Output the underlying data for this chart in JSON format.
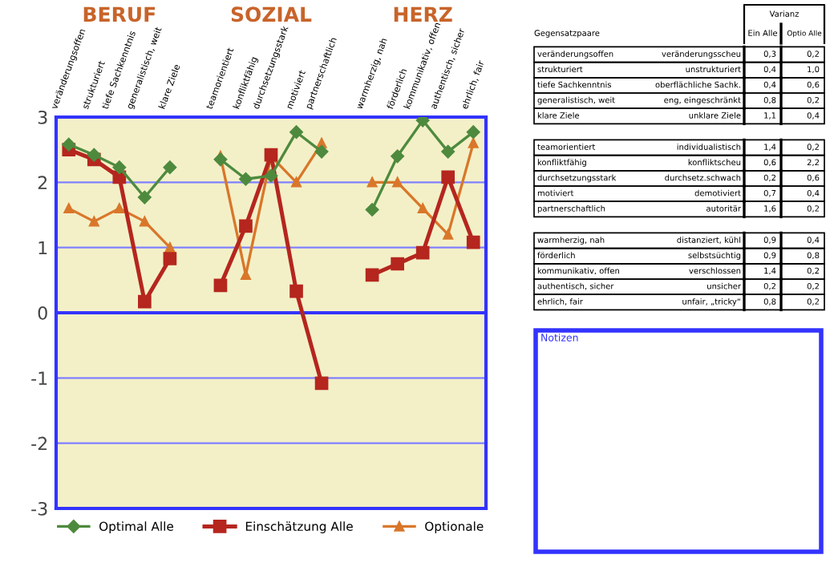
{
  "chart_data": [
    {
      "type": "line",
      "annotations": [
        "BERUF",
        "SOZIAL",
        "HERZ"
      ],
      "categories": [
        "veränderungsoffen",
        "strukturiert",
        "tiefe Sachkenntnis",
        "generalistisch, weit",
        "klare Ziele",
        null,
        "teamorientiert",
        "konfliktfähig",
        "durchsetzungsstark",
        "motiviert",
        "partnerschaftlich",
        null,
        "warmherzig, nah",
        "förderlich",
        "kommunikativ, offen",
        "authentisch, sicher",
        "ehrlich, fair"
      ],
      "series": [
        {
          "name": "Optimal Alle",
          "color": "#4e8a3e",
          "marker": "diamond",
          "values": [
            2.58,
            2.42,
            2.23,
            1.77,
            2.23,
            null,
            2.35,
            2.05,
            2.1,
            2.77,
            2.47,
            null,
            1.58,
            2.4,
            2.95,
            2.47,
            2.77
          ]
        },
        {
          "name": "Einschätzung Alle",
          "color": "#b5261e",
          "marker": "square",
          "values": [
            2.5,
            2.35,
            2.08,
            0.17,
            0.83,
            null,
            0.42,
            1.33,
            2.42,
            0.33,
            -1.08,
            null,
            0.58,
            0.75,
            0.92,
            2.08,
            1.08
          ]
        },
        {
          "name": "Optionale",
          "color": "#d9772a",
          "marker": "triangle",
          "values": [
            1.6,
            1.4,
            1.6,
            1.4,
            1.0,
            null,
            2.4,
            0.58,
            2.4,
            2.0,
            2.6,
            null,
            2.0,
            2.0,
            1.6,
            1.2,
            2.6
          ]
        }
      ],
      "ref_lines": [
        {
          "axis": "y",
          "value": 0,
          "color": "#3333ff"
        }
      ],
      "ylim": [
        -3,
        3
      ],
      "yticks": [
        -3,
        -2,
        -1,
        0,
        1,
        2,
        3
      ],
      "grid": "y",
      "legend": "bottom",
      "line_style": "solid"
    },
    {
      "type": "other",
      "annotations": [
        "Gegensatzpaare",
        "Varianz",
        "Ein Alle",
        "Optio Alle",
        "veränderungsoffen",
        "veränderungsscheu",
        "0,3",
        "0,2",
        "strukturiert",
        "unstrukturiert",
        "0,4",
        "1,0",
        "tiefe Sachkenntnis",
        "oberflächliche Sachk.",
        "0,4",
        "0,6",
        "generalistisch, weit",
        "eng, eingeschränkt",
        "0,8",
        "0,2",
        "klare Ziele",
        "unklare Ziele",
        "1,1",
        "0,4",
        "teamorientiert",
        "individualistisch",
        "1,4",
        "0,2",
        "konfliktfähig",
        "konfliktscheu",
        "0,6",
        "2,2",
        "durchsetzungsstark",
        "durchsetz.schwach",
        "0,2",
        "0,6",
        "motiviert",
        "demotiviert",
        "0,7",
        "0,4",
        "partnerschaftlich",
        "autoritär",
        "1,6",
        "0,2",
        "warmherzig, nah",
        "distanziert, kühl",
        "0,9",
        "0,4",
        "förderlich",
        "selbstsüchtig",
        "0,9",
        "0,8",
        "kommunikativ, offen",
        "verschlossen",
        "1,4",
        "0,2",
        "authentisch, sicher",
        "unsicher",
        "0,2",
        "0,2",
        "ehrlich, fair",
        "unfair, „tricky“",
        "0,8",
        "0,2",
        "Notizen"
      ]
    }
  ]
}
